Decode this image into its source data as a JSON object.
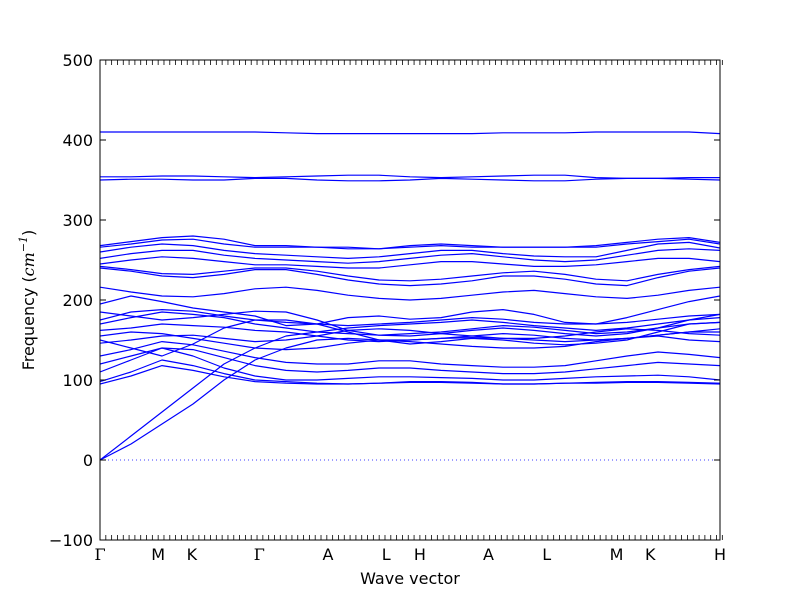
{
  "chart_data": {
    "type": "line",
    "xlabel": "Wave vector",
    "ylabel": {
      "prefix": "Frequency (",
      "unit": "cm",
      "exponent": "−1",
      "suffix": ")"
    },
    "ylim": [
      -100,
      500
    ],
    "yticks": [
      -100,
      0,
      100,
      200,
      300,
      400,
      500
    ],
    "x_labels": [
      "Γ",
      "M",
      "K",
      "Γ",
      "A",
      "L",
      "H",
      "A",
      "L",
      "M",
      "K",
      "H"
    ],
    "x_label_positions": [
      0,
      1.0,
      1.58,
      2.74,
      3.92,
      4.92,
      5.5,
      6.68,
      7.68,
      8.88,
      9.46,
      10.66
    ],
    "x_range": [
      0,
      10.66
    ],
    "zero_line": 0,
    "line_color": "#0000ff",
    "zero_line_color": "#0000ff",
    "series": [
      {
        "values": [
          410,
          410,
          410,
          410,
          410,
          410,
          409,
          408,
          408,
          408,
          408,
          408,
          408,
          409,
          409,
          409,
          410,
          410,
          410,
          410,
          408
        ]
      },
      {
        "values": [
          354,
          354,
          355,
          355,
          354,
          353,
          354,
          355,
          356,
          356,
          354,
          353,
          354,
          355,
          356,
          356,
          353,
          352,
          352,
          353,
          353
        ]
      },
      {
        "values": [
          350,
          351,
          351,
          350,
          350,
          352,
          352,
          350,
          349,
          349,
          350,
          352,
          351,
          350,
          349,
          349,
          351,
          352,
          352,
          351,
          350
        ]
      },
      {
        "values": [
          268,
          273,
          278,
          280,
          276,
          268,
          268,
          266,
          264,
          264,
          268,
          270,
          268,
          266,
          266,
          266,
          268,
          272,
          276,
          278,
          272
        ]
      },
      {
        "values": [
          266,
          270,
          275,
          276,
          270,
          266,
          266,
          266,
          266,
          264,
          266,
          268,
          266,
          266,
          266,
          266,
          266,
          270,
          273,
          276,
          270
        ]
      },
      {
        "values": [
          260,
          266,
          270,
          268,
          262,
          258,
          256,
          254,
          252,
          254,
          258,
          262,
          262,
          258,
          255,
          254,
          254,
          262,
          270,
          272,
          265
        ]
      },
      {
        "values": [
          252,
          258,
          262,
          262,
          256,
          252,
          250,
          248,
          246,
          248,
          252,
          256,
          258,
          254,
          250,
          248,
          250,
          256,
          262,
          264,
          262
        ]
      },
      {
        "values": [
          245,
          250,
          254,
          252,
          248,
          244,
          244,
          242,
          240,
          240,
          244,
          248,
          248,
          245,
          242,
          242,
          244,
          248,
          252,
          252,
          248
        ]
      },
      {
        "values": [
          242,
          238,
          233,
          232,
          236,
          240,
          240,
          236,
          230,
          225,
          224,
          226,
          230,
          234,
          236,
          232,
          226,
          224,
          232,
          238,
          242
        ]
      },
      {
        "values": [
          240,
          236,
          230,
          228,
          232,
          238,
          238,
          232,
          225,
          220,
          218,
          220,
          224,
          230,
          230,
          226,
          220,
          218,
          228,
          236,
          240
        ]
      },
      {
        "values": [
          216,
          210,
          205,
          204,
          208,
          214,
          216,
          212,
          206,
          202,
          200,
          202,
          206,
          210,
          212,
          208,
          204,
          202,
          206,
          212,
          216
        ]
      },
      {
        "values": [
          195,
          205,
          198,
          190,
          185,
          180,
          168,
          170,
          178,
          180,
          176,
          178,
          185,
          188,
          182,
          172,
          170,
          178,
          188,
          198,
          205
        ]
      },
      {
        "values": [
          0,
          30,
          60,
          90,
          120,
          140,
          155,
          160,
          165,
          168,
          170,
          172,
          175,
          172,
          168,
          165,
          162,
          165,
          170,
          175,
          178
        ]
      },
      {
        "values": [
          0,
          20,
          45,
          70,
          100,
          125,
          140,
          150,
          152,
          150,
          150,
          152,
          153,
          152,
          150,
          148,
          150,
          152,
          156,
          160,
          160
        ]
      },
      {
        "values": [
          185,
          180,
          175,
          178,
          182,
          186,
          185,
          175,
          162,
          156,
          155,
          158,
          162,
          165,
          162,
          158,
          155,
          158,
          165,
          175,
          182
        ]
      },
      {
        "values": [
          150,
          140,
          130,
          145,
          165,
          175,
          175,
          170,
          160,
          150,
          145,
          148,
          152,
          150,
          146,
          144,
          146,
          150,
          160,
          170,
          172
        ]
      },
      {
        "values": [
          170,
          178,
          185,
          182,
          178,
          170,
          165,
          160,
          158,
          156,
          158,
          160,
          164,
          168,
          166,
          162,
          158,
          160,
          165,
          170,
          172
        ]
      },
      {
        "values": [
          175,
          185,
          188,
          186,
          180,
          175,
          172,
          170,
          168,
          170,
          172,
          175,
          178,
          176,
          172,
          170,
          170,
          172,
          176,
          180,
          182
        ]
      },
      {
        "values": [
          162,
          165,
          170,
          168,
          166,
          162,
          160,
          155,
          150,
          148,
          150,
          152,
          155,
          158,
          156,
          152,
          150,
          152,
          156,
          160,
          164
        ]
      },
      {
        "values": [
          110,
          125,
          140,
          130,
          115,
          105,
          100,
          100,
          102,
          104,
          104,
          103,
          102,
          100,
          100,
          102,
          104,
          105,
          106,
          104,
          100
        ]
      },
      {
        "values": [
          98,
          110,
          125,
          118,
          108,
          100,
          98,
          96,
          95,
          96,
          98,
          98,
          97,
          95,
          95,
          96,
          97,
          98,
          98,
          97,
          96
        ]
      },
      {
        "values": [
          95,
          105,
          118,
          112,
          104,
          98,
          96,
          95,
          95,
          96,
          97,
          97,
          96,
          95,
          95,
          96,
          96,
          97,
          97,
          96,
          95
        ]
      },
      {
        "values": [
          120,
          130,
          140,
          138,
          128,
          118,
          112,
          110,
          112,
          115,
          115,
          112,
          110,
          108,
          108,
          110,
          114,
          118,
          122,
          120,
          118
        ]
      },
      {
        "values": [
          130,
          138,
          148,
          144,
          136,
          128,
          122,
          120,
          120,
          124,
          124,
          120,
          118,
          116,
          116,
          118,
          124,
          130,
          135,
          132,
          128
        ]
      },
      {
        "values": [
          155,
          160,
          158,
          152,
          146,
          140,
          138,
          140,
          146,
          150,
          148,
          145,
          142,
          140,
          140,
          142,
          148,
          152,
          155,
          150,
          148
        ]
      },
      {
        "values": [
          146,
          150,
          155,
          156,
          152,
          148,
          150,
          155,
          162,
          164,
          162,
          158,
          155,
          152,
          152,
          155,
          160,
          164,
          162,
          158,
          156
        ]
      }
    ]
  }
}
